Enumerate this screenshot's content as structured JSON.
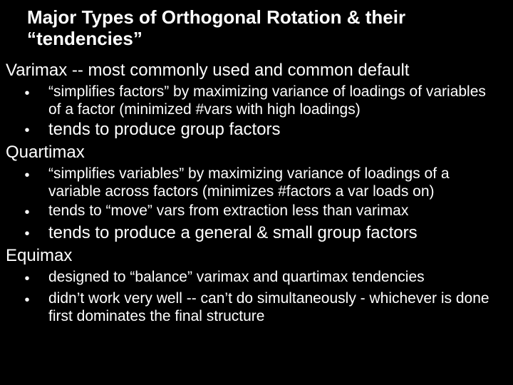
{
  "colors": {
    "background": "#000000",
    "text": "#ffffff"
  },
  "typography": {
    "title_fontsize": 26,
    "body_fontsize": 24,
    "sub_fontsize": 21,
    "font_family": "Arial"
  },
  "title": "Major Types  of Orthogonal Rotation & their “tendencies”",
  "varimax": {
    "name": "Varimax -- most commonly used and common default",
    "b1": " “simplifies factors” by maximizing variance of loadings of variables of a factor (minimized #vars with high loadings)",
    "b2": " tends to produce group factors"
  },
  "quartimax": {
    "name": "Quartimax",
    "b1": "“simplifies variables” by maximizing variance of loadings of a variable across factors (minimizes #factors a var loads on)",
    "b2": "tends to “move” vars from extraction less than varimax",
    "b3": "tends to produce a general & small group factors"
  },
  "equimax": {
    "name": "Equimax",
    "b1": "designed to “balance” varimax and quartimax tendencies",
    "b2": "didn’t work very well -- can’t do simultaneously - whichever is done first dominates the final structure"
  }
}
